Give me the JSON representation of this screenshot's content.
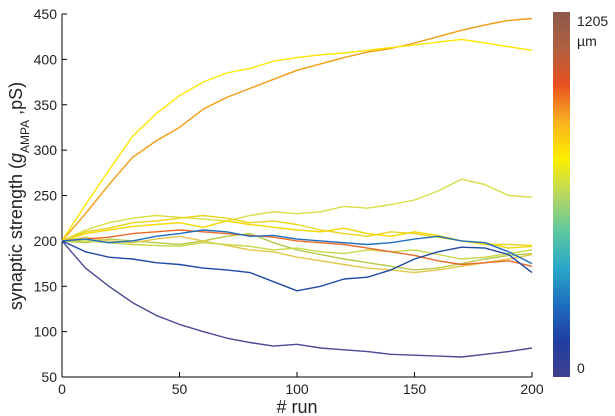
{
  "chart_data": {
    "type": "line",
    "xlabel": "# run",
    "ylabel": {
      "prefix": "synaptic strength (",
      "symbol": "g",
      "subscript": "AMPA",
      "suffix": " ,pS)"
    },
    "xlim": [
      0,
      200
    ],
    "ylim": [
      50,
      450
    ],
    "x_ticks": [
      0,
      50,
      100,
      150,
      200
    ],
    "y_ticks": [
      50,
      100,
      150,
      200,
      250,
      300,
      350,
      400,
      450
    ],
    "grid": false,
    "colorbar": {
      "max_label": "1205",
      "unit_label": "µm",
      "min_label": "0",
      "colors": [
        "#3f3f8f",
        "#1f3fa0",
        "#1f6fbf",
        "#2aa8c8",
        "#5fc8a0",
        "#b8d860",
        "#ffee00",
        "#f8b020",
        "#e85020",
        "#b06040",
        "#8c5a4a"
      ]
    },
    "x": [
      0,
      10,
      20,
      30,
      40,
      50,
      60,
      70,
      80,
      90,
      100,
      110,
      120,
      130,
      140,
      150,
      160,
      170,
      180,
      190,
      200
    ],
    "series": [
      {
        "color": "#f39c12",
        "values": [
          200,
          230,
          262,
          292,
          310,
          325,
          345,
          358,
          368,
          378,
          388,
          395,
          402,
          408,
          412,
          418,
          425,
          432,
          438,
          443,
          445
        ]
      },
      {
        "color": "#ffe600",
        "values": [
          200,
          240,
          278,
          315,
          340,
          360,
          375,
          385,
          390,
          398,
          402,
          405,
          407,
          410,
          413,
          416,
          419,
          422,
          418,
          414,
          410
        ]
      },
      {
        "color": "#d9de45",
        "values": [
          200,
          212,
          220,
          225,
          228,
          226,
          224,
          222,
          228,
          232,
          230,
          232,
          238,
          236,
          240,
          245,
          255,
          268,
          262,
          250,
          248
        ]
      },
      {
        "color": "#f6d800",
        "values": [
          200,
          208,
          212,
          216,
          218,
          220,
          215,
          222,
          218,
          215,
          212,
          210,
          214,
          208,
          205,
          210,
          206,
          200,
          198,
          192,
          194
        ]
      },
      {
        "color": "#ead41e",
        "values": [
          200,
          210,
          214,
          220,
          222,
          225,
          228,
          225,
          220,
          222,
          218,
          212,
          208,
          205,
          210,
          208,
          204,
          200,
          196,
          196,
          195
        ]
      },
      {
        "color": "#b7c948",
        "values": [
          200,
          198,
          202,
          200,
          198,
          196,
          200,
          205,
          208,
          198,
          190,
          185,
          180,
          176,
          172,
          168,
          170,
          175,
          180,
          184,
          186
        ]
      },
      {
        "color": "#e3c84a",
        "values": [
          200,
          204,
          200,
          198,
          202,
          205,
          200,
          195,
          190,
          188,
          182,
          178,
          174,
          170,
          168,
          165,
          168,
          172,
          176,
          180,
          185
        ]
      },
      {
        "color": "#c8d84a",
        "values": [
          200,
          200,
          198,
          196,
          195,
          194,
          198,
          196,
          194,
          190,
          192,
          188,
          186,
          190,
          188,
          190,
          185,
          180,
          182,
          186,
          190
        ]
      },
      {
        "color": "#ec6a28",
        "values": [
          200,
          202,
          204,
          208,
          210,
          212,
          210,
          208,
          206,
          204,
          200,
          198,
          196,
          192,
          188,
          184,
          178,
          174,
          176,
          178,
          172
        ]
      },
      {
        "color": "#1f6fbf",
        "values": [
          200,
          202,
          198,
          200,
          205,
          208,
          212,
          210,
          205,
          206,
          202,
          200,
          198,
          196,
          198,
          202,
          205,
          200,
          198,
          188,
          175
        ]
      },
      {
        "color": "#1f4aa6",
        "values": [
          200,
          188,
          182,
          180,
          176,
          174,
          170,
          168,
          165,
          155,
          145,
          150,
          158,
          160,
          168,
          180,
          188,
          193,
          192,
          185,
          165
        ]
      },
      {
        "color": "#4b4b96",
        "values": [
          200,
          170,
          150,
          132,
          118,
          108,
          100,
          93,
          88,
          84,
          86,
          82,
          80,
          78,
          75,
          74,
          73,
          72,
          75,
          78,
          82
        ]
      }
    ]
  }
}
